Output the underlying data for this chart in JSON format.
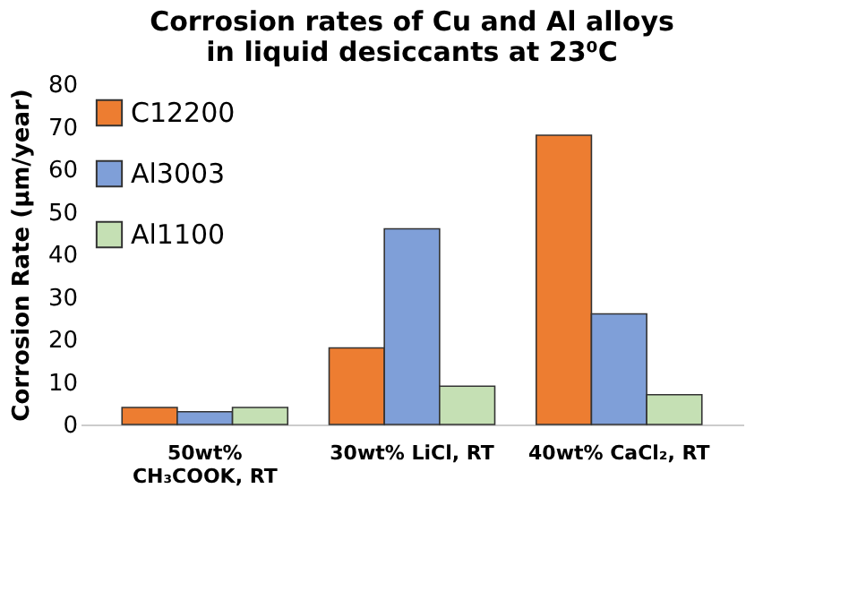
{
  "chart_data": {
    "type": "bar",
    "title": "Corrosion rates of Cu and Al alloys in liquid desiccants at 23⁰C",
    "ylabel": "Corrosion Rate (µm/year)",
    "categories": [
      "50wt% CH₃COOK, RT",
      "30wt% LiCl, RT",
      "40wt% CaCl₂, RT"
    ],
    "series": [
      {
        "name": "C12200",
        "color": "#ed7d31",
        "values": [
          4,
          18,
          68
        ]
      },
      {
        "name": "Al3003",
        "color": "#7f9fd8",
        "values": [
          3,
          46,
          26
        ]
      },
      {
        "name": "Al1100",
        "color": "#c5e0b4",
        "values": [
          4,
          9,
          7
        ]
      }
    ],
    "ylim": [
      0,
      80
    ],
    "yticks": [
      0,
      10,
      20,
      30,
      40,
      50,
      60,
      70,
      80
    ],
    "grid": false,
    "legend": "top left"
  }
}
